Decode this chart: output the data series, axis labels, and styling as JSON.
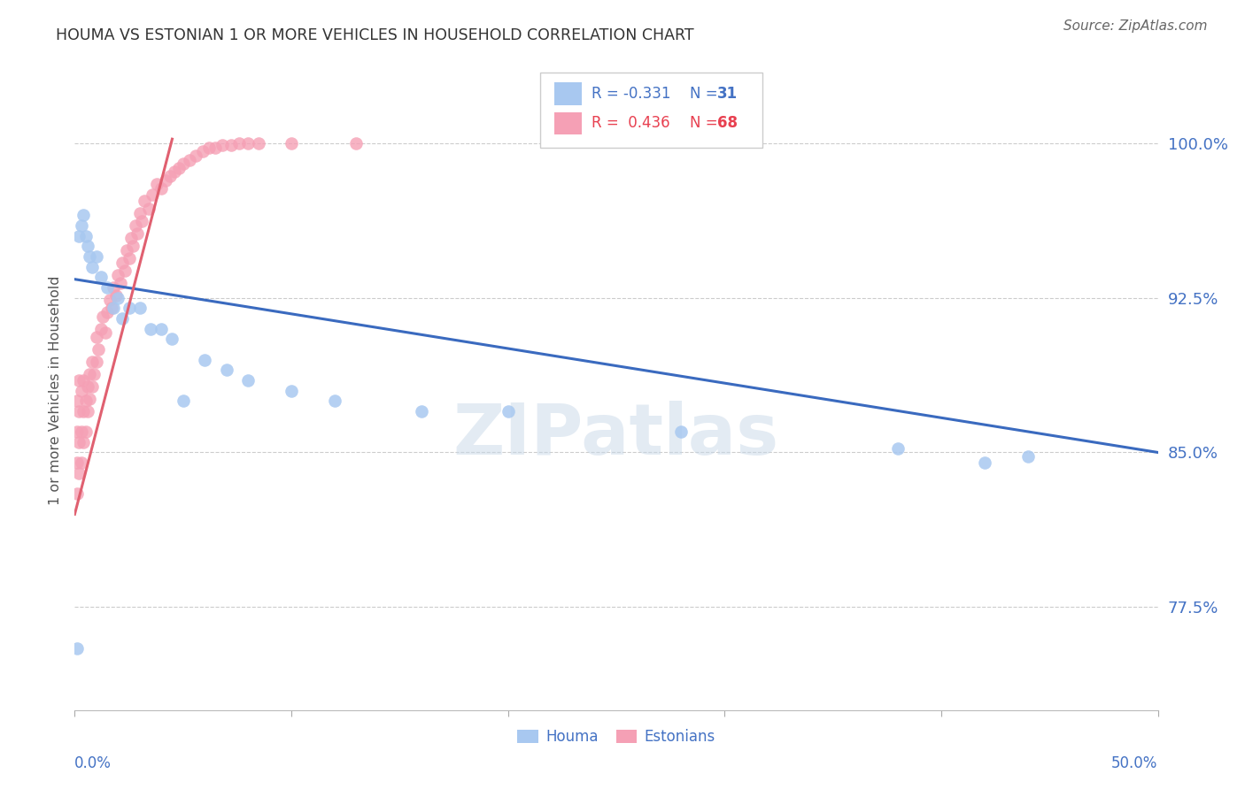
{
  "title": "HOUMA VS ESTONIAN 1 OR MORE VEHICLES IN HOUSEHOLD CORRELATION CHART",
  "source": "Source: ZipAtlas.com",
  "ylabel": "1 or more Vehicles in Household",
  "ytick_labels": [
    "77.5%",
    "85.0%",
    "92.5%",
    "100.0%"
  ],
  "ytick_values": [
    0.775,
    0.85,
    0.925,
    1.0
  ],
  "xlim": [
    0.0,
    0.5
  ],
  "ylim": [
    0.725,
    1.035
  ],
  "legend_houma_R": "-0.331",
  "legend_houma_N": "31",
  "legend_estonian_R": "0.436",
  "legend_estonian_N": "68",
  "watermark": "ZIPatlas",
  "houma_color": "#a8c8f0",
  "estonian_color": "#f5a0b5",
  "trend_houma_color": "#3a6abf",
  "trend_estonian_color": "#e06070",
  "houma_x": [
    0.001,
    0.002,
    0.003,
    0.004,
    0.005,
    0.006,
    0.007,
    0.008,
    0.01,
    0.012,
    0.015,
    0.018,
    0.02,
    0.022,
    0.025,
    0.03,
    0.035,
    0.04,
    0.045,
    0.05,
    0.06,
    0.07,
    0.08,
    0.1,
    0.12,
    0.16,
    0.2,
    0.28,
    0.38,
    0.42,
    0.44
  ],
  "houma_y": [
    0.755,
    0.955,
    0.96,
    0.965,
    0.955,
    0.95,
    0.945,
    0.94,
    0.945,
    0.935,
    0.93,
    0.92,
    0.925,
    0.915,
    0.92,
    0.92,
    0.91,
    0.91,
    0.905,
    0.875,
    0.895,
    0.89,
    0.885,
    0.88,
    0.875,
    0.87,
    0.87,
    0.86,
    0.852,
    0.845,
    0.848
  ],
  "estonian_x": [
    0.001,
    0.001,
    0.001,
    0.001,
    0.002,
    0.002,
    0.002,
    0.002,
    0.003,
    0.003,
    0.003,
    0.004,
    0.004,
    0.004,
    0.005,
    0.005,
    0.006,
    0.006,
    0.007,
    0.007,
    0.008,
    0.008,
    0.009,
    0.01,
    0.01,
    0.011,
    0.012,
    0.013,
    0.014,
    0.015,
    0.016,
    0.017,
    0.018,
    0.019,
    0.02,
    0.021,
    0.022,
    0.023,
    0.024,
    0.025,
    0.026,
    0.027,
    0.028,
    0.029,
    0.03,
    0.031,
    0.032,
    0.034,
    0.036,
    0.038,
    0.04,
    0.042,
    0.044,
    0.046,
    0.048,
    0.05,
    0.053,
    0.056,
    0.059,
    0.062,
    0.065,
    0.068,
    0.072,
    0.076,
    0.08,
    0.085,
    0.1,
    0.13
  ],
  "estonian_y": [
    0.83,
    0.845,
    0.86,
    0.875,
    0.84,
    0.855,
    0.87,
    0.885,
    0.845,
    0.86,
    0.88,
    0.855,
    0.87,
    0.885,
    0.86,
    0.875,
    0.87,
    0.882,
    0.876,
    0.888,
    0.882,
    0.894,
    0.888,
    0.894,
    0.906,
    0.9,
    0.91,
    0.916,
    0.908,
    0.918,
    0.924,
    0.92,
    0.93,
    0.926,
    0.936,
    0.932,
    0.942,
    0.938,
    0.948,
    0.944,
    0.954,
    0.95,
    0.96,
    0.956,
    0.966,
    0.962,
    0.972,
    0.968,
    0.975,
    0.98,
    0.978,
    0.982,
    0.984,
    0.986,
    0.988,
    0.99,
    0.992,
    0.994,
    0.996,
    0.998,
    0.998,
    0.999,
    0.999,
    1.0,
    1.0,
    1.0,
    1.0,
    1.0
  ],
  "houma_trend_x": [
    0.0,
    0.5
  ],
  "houma_trend_y": [
    0.934,
    0.85
  ],
  "estonian_trend_x": [
    0.0,
    0.045
  ],
  "estonian_trend_y": [
    0.82,
    1.002
  ]
}
